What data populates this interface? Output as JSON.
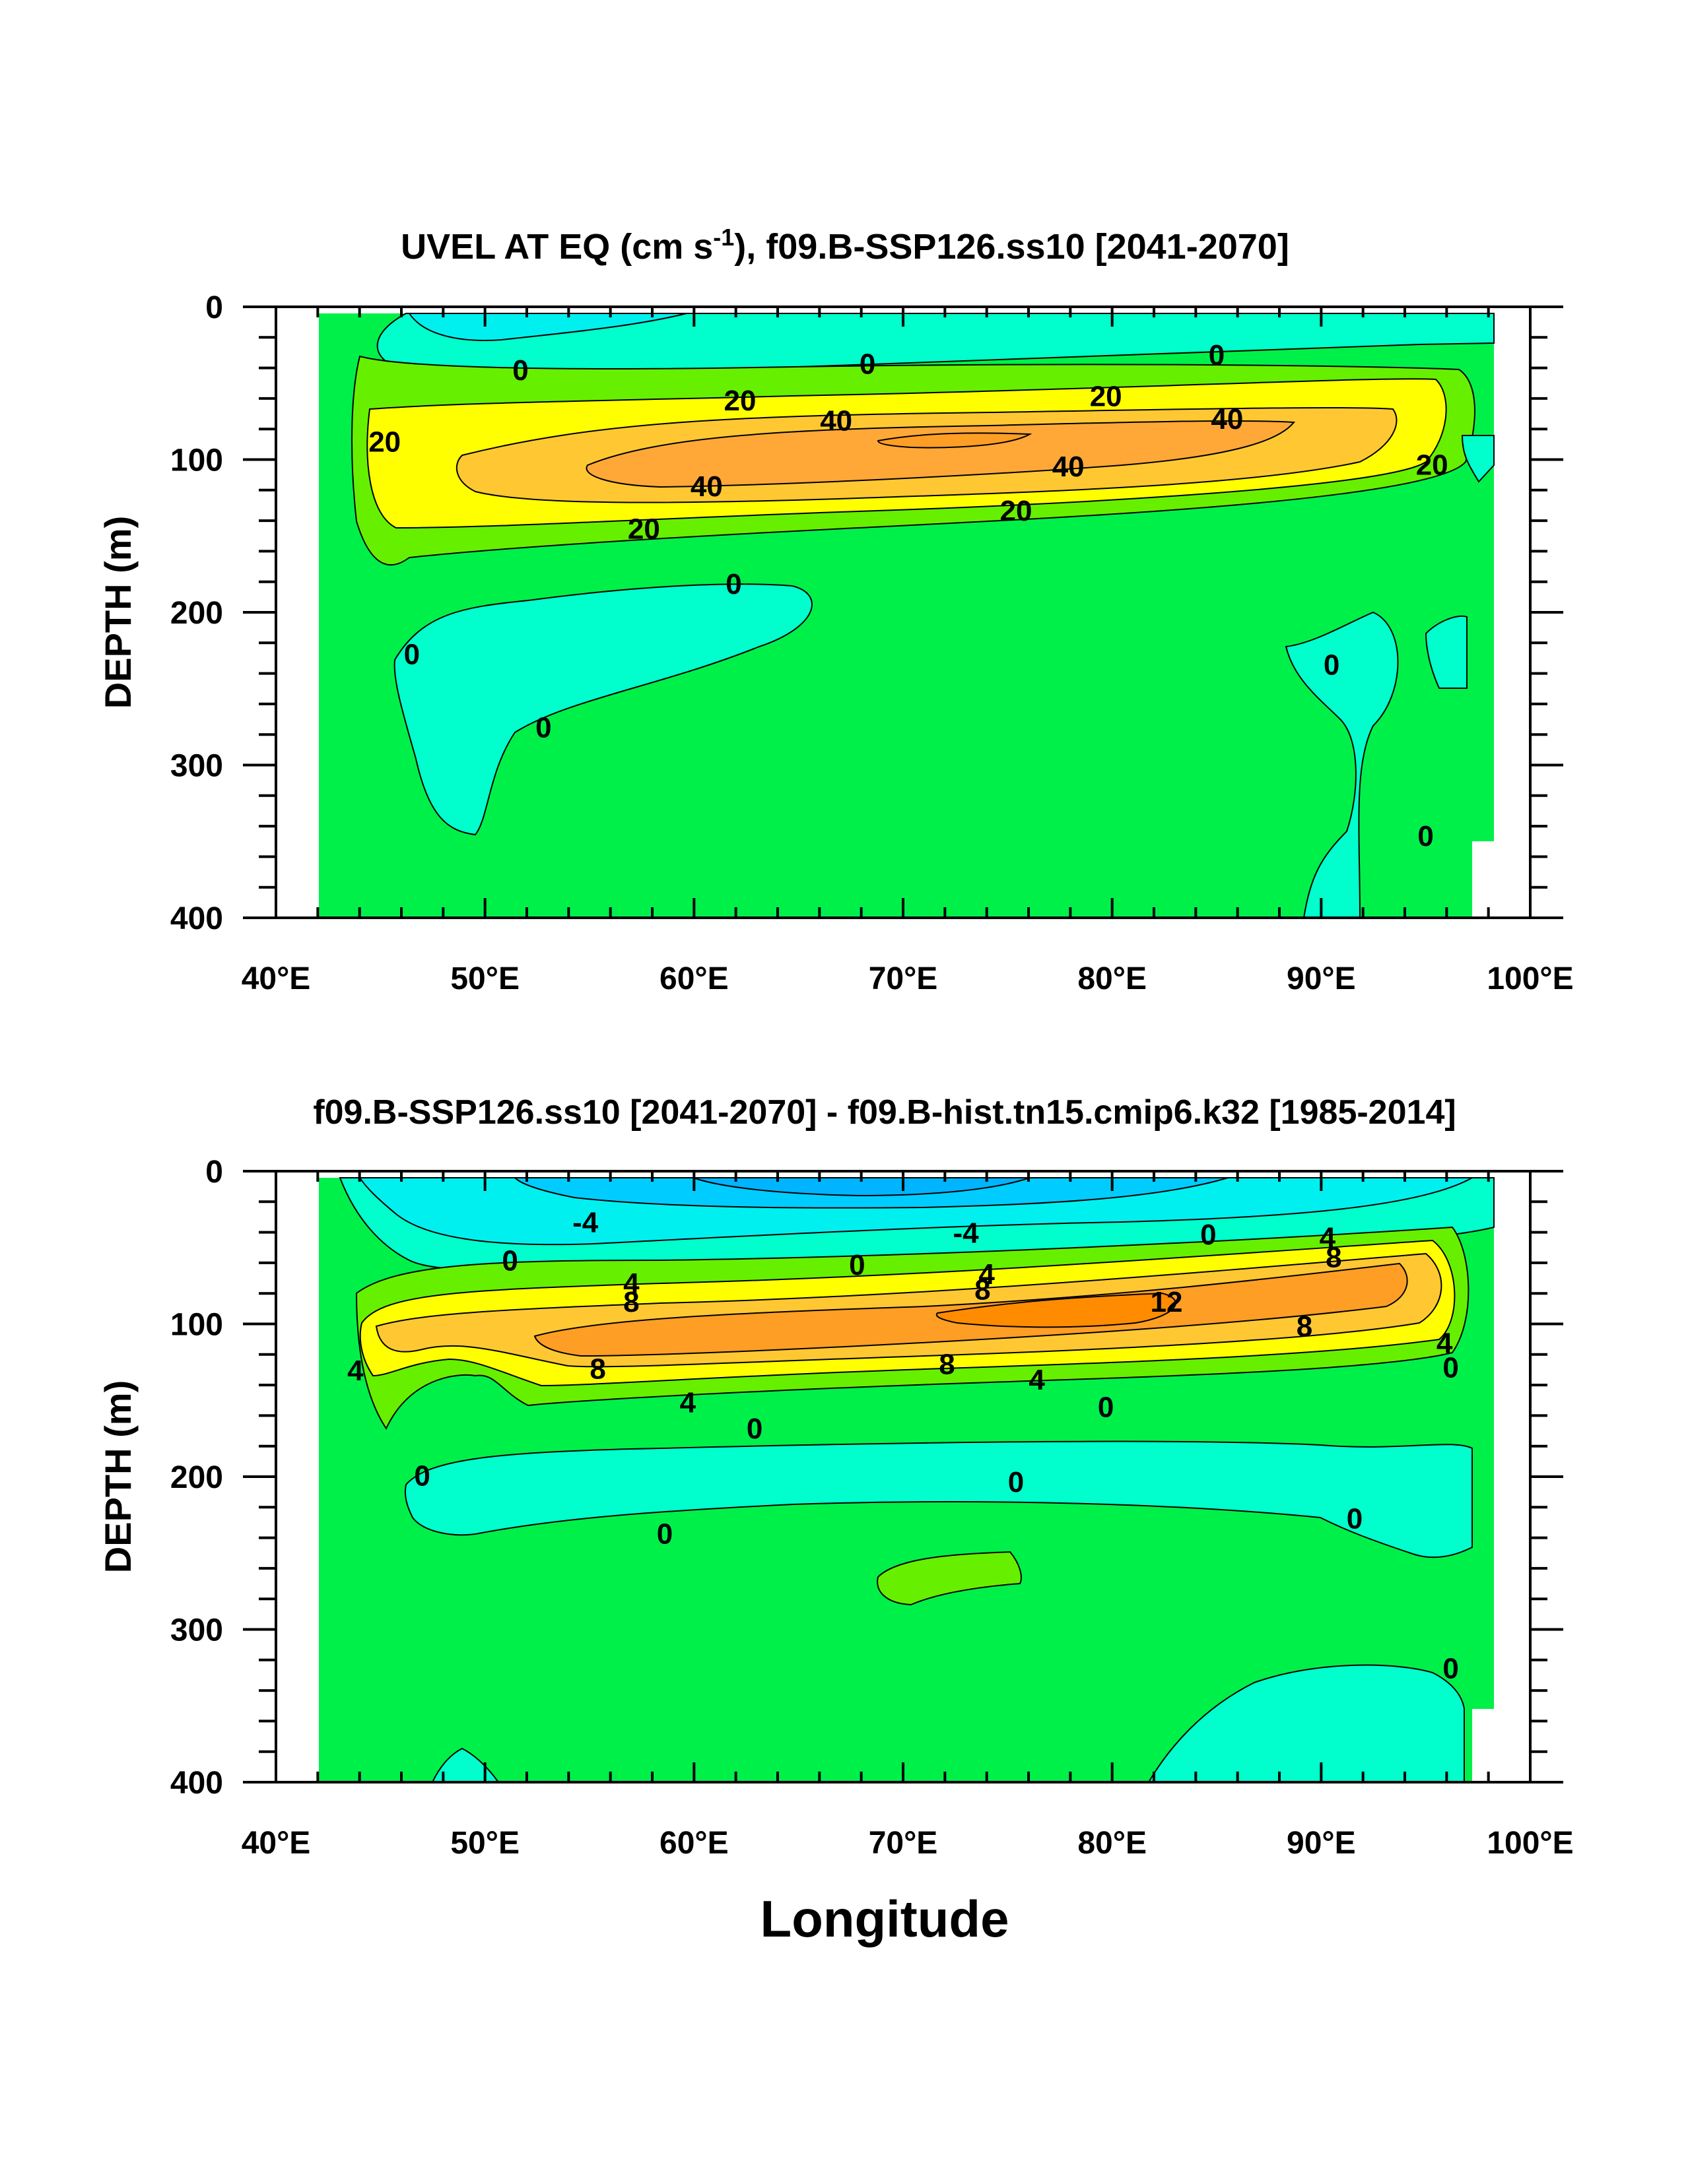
{
  "chart_data": [
    {
      "type": "contour",
      "title_main": "UVEL AT EQ (cm s",
      "title_sup": "-1",
      "title_rest": "), f09.B-SSP126.ss10 [2041-2070]",
      "ylabel": "DEPTH (m)",
      "xlabel": "",
      "x_ticks": [
        "40°E",
        "50°E",
        "60°E",
        "70°E",
        "80°E",
        "90°E",
        "100°E"
      ],
      "x_tick_values": [
        40,
        50,
        60,
        70,
        80,
        90,
        100
      ],
      "y_ticks": [
        "0",
        "100",
        "200",
        "300",
        "400"
      ],
      "y_tick_values": [
        0,
        100,
        200,
        300,
        400
      ],
      "xlim": [
        40,
        100
      ],
      "ylim": [
        0,
        400
      ],
      "fill_colors": {
        "background": "#00f04a",
        "neg_weak": "#00ffcc",
        "neg_mid": "#00f0f0",
        "pos_weak": "#66f000",
        "pos_mid": "#ffff00",
        "pos_high": "#ffc832",
        "pos_max": "#ff9e24"
      },
      "contour_labels": [
        {
          "text": "0",
          "lon": 51.7,
          "depth": 41
        },
        {
          "text": "0",
          "lon": 68.3,
          "depth": 37
        },
        {
          "text": "0",
          "lon": 85.0,
          "depth": 31
        },
        {
          "text": "20",
          "lon": 62.2,
          "depth": 61
        },
        {
          "text": "20",
          "lon": 79.7,
          "depth": 58
        },
        {
          "text": "40",
          "lon": 66.8,
          "depth": 74
        },
        {
          "text": "40",
          "lon": 85.5,
          "depth": 73
        },
        {
          "text": "20",
          "lon": 45.2,
          "depth": 88
        },
        {
          "text": "40",
          "lon": 60.6,
          "depth": 117
        },
        {
          "text": "40",
          "lon": 77.9,
          "depth": 104
        },
        {
          "text": "20",
          "lon": 95.3,
          "depth": 103
        },
        {
          "text": "20",
          "lon": 57.6,
          "depth": 145
        },
        {
          "text": "20",
          "lon": 75.4,
          "depth": 133
        },
        {
          "text": "0",
          "lon": 61.9,
          "depth": 181
        },
        {
          "text": "0",
          "lon": 46.5,
          "depth": 227
        },
        {
          "text": "0",
          "lon": 52.8,
          "depth": 275
        },
        {
          "text": "0",
          "lon": 90.5,
          "depth": 234
        },
        {
          "text": "0",
          "lon": 95.0,
          "depth": 346
        }
      ]
    },
    {
      "type": "contour",
      "title_main": "f09.B-SSP126.ss10 [2041-2070] - f09.B-hist.tn15.cmip6.k32 [1985-2014]",
      "ylabel": "DEPTH (m)",
      "xlabel": "Longitude",
      "x_ticks": [
        "40°E",
        "50°E",
        "60°E",
        "70°E",
        "80°E",
        "90°E",
        "100°E"
      ],
      "x_tick_values": [
        40,
        50,
        60,
        70,
        80,
        90,
        100
      ],
      "y_ticks": [
        "0",
        "100",
        "200",
        "300",
        "400"
      ],
      "y_tick_values": [
        0,
        100,
        200,
        300,
        400
      ],
      "xlim": [
        40,
        100
      ],
      "ylim": [
        0,
        400
      ],
      "fill_colors": {
        "background": "#00f04a",
        "neg_weak": "#00ffcc",
        "neg_mid": "#00f0f0",
        "neg_strong": "#00ccff",
        "neg_max": "#00b4ff",
        "pos_weak": "#66f000",
        "pos_mid": "#ffff00",
        "pos_high": "#ffc832",
        "pos_max": "#ff9e24",
        "pos_peak": "#ff8c00"
      },
      "contour_labels": [
        {
          "text": "-4",
          "lon": 54.8,
          "depth": 33
        },
        {
          "text": "-4",
          "lon": 73.0,
          "depth": 40
        },
        {
          "text": "0",
          "lon": 84.6,
          "depth": 41
        },
        {
          "text": "0",
          "lon": 51.2,
          "depth": 58
        },
        {
          "text": "0",
          "lon": 67.8,
          "depth": 61
        },
        {
          "text": "4",
          "lon": 90.3,
          "depth": 43
        },
        {
          "text": "8",
          "lon": 90.6,
          "depth": 56
        },
        {
          "text": "4",
          "lon": 57.0,
          "depth": 73
        },
        {
          "text": "8",
          "lon": 57.0,
          "depth": 85
        },
        {
          "text": "4",
          "lon": 74.0,
          "depth": 67
        },
        {
          "text": "8",
          "lon": 73.8,
          "depth": 77
        },
        {
          "text": "12",
          "lon": 82.6,
          "depth": 85
        },
        {
          "text": "8",
          "lon": 89.2,
          "depth": 101
        },
        {
          "text": "4",
          "lon": 95.9,
          "depth": 112
        },
        {
          "text": "8",
          "lon": 55.4,
          "depth": 129
        },
        {
          "text": "8",
          "lon": 72.1,
          "depth": 126
        },
        {
          "text": "4",
          "lon": 76.4,
          "depth": 136
        },
        {
          "text": "4",
          "lon": 43.8,
          "depth": 130
        },
        {
          "text": "4",
          "lon": 59.7,
          "depth": 151
        },
        {
          "text": "0",
          "lon": 96.2,
          "depth": 128
        },
        {
          "text": "0",
          "lon": 79.7,
          "depth": 154
        },
        {
          "text": "0",
          "lon": 62.9,
          "depth": 168
        },
        {
          "text": "0",
          "lon": 47.0,
          "depth": 199
        },
        {
          "text": "0",
          "lon": 75.4,
          "depth": 203
        },
        {
          "text": "0",
          "lon": 58.6,
          "depth": 237
        },
        {
          "text": "0",
          "lon": 91.6,
          "depth": 227
        },
        {
          "text": "0",
          "lon": 96.2,
          "depth": 325
        }
      ]
    }
  ]
}
